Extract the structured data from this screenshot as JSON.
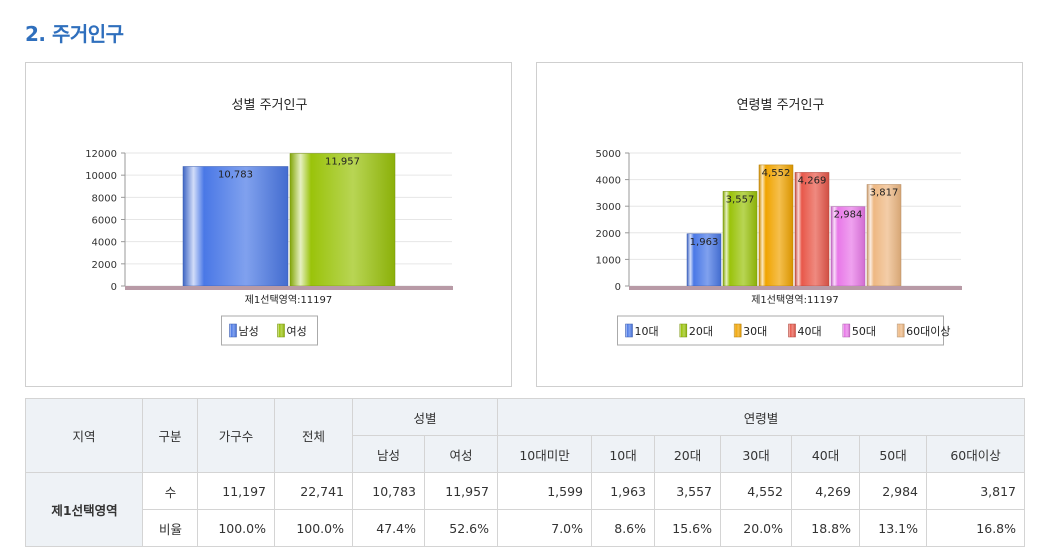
{
  "section_title": "2. 주거인구",
  "chart_data": [
    {
      "type": "bar",
      "title": "성별 주거인구",
      "xlabel": "제1선택영역:11197",
      "ylim": [
        0,
        12000
      ],
      "yticks": [
        0,
        2000,
        4000,
        6000,
        8000,
        10000,
        12000
      ],
      "categories": [
        "남성",
        "여성"
      ],
      "values": [
        10783,
        11957
      ],
      "value_labels": [
        "10,783",
        "11,957"
      ],
      "colors": [
        "#4a78e6",
        "#9ac30a"
      ],
      "grid": true,
      "legend": "bottom",
      "legend_entries": [
        "남성",
        "여성"
      ]
    },
    {
      "type": "bar",
      "title": "연령별 주거인구",
      "xlabel": "제1선택영역:11197",
      "ylim": [
        0,
        5000
      ],
      "yticks": [
        0,
        1000,
        2000,
        3000,
        4000,
        5000
      ],
      "categories": [
        "10대",
        "20대",
        "30대",
        "40대",
        "50대",
        "60대이상"
      ],
      "values": [
        1963,
        3557,
        4552,
        4269,
        2984,
        3817
      ],
      "value_labels": [
        "1,963",
        "3,557",
        "4,552",
        "4,269",
        "2,984",
        "3,817"
      ],
      "colors": [
        "#4a78e6",
        "#9ac30a",
        "#f0a400",
        "#e8584a",
        "#e878e8",
        "#eeb882"
      ],
      "grid": true,
      "legend": "bottom",
      "legend_entries": [
        "10대",
        "20대",
        "30대",
        "40대",
        "50대",
        "60대이상"
      ]
    }
  ],
  "table": {
    "headers": {
      "region": "지역",
      "gubun": "구분",
      "households": "가구수",
      "total": "전체",
      "gender": "성별",
      "age": "연령별",
      "male": "남성",
      "female": "여성",
      "ages": [
        "10대미만",
        "10대",
        "20대",
        "30대",
        "40대",
        "50대",
        "60대이상"
      ]
    },
    "region_name": "제1선택영역",
    "rows": [
      {
        "label": "수",
        "values": [
          "11,197",
          "22,741",
          "10,783",
          "11,957",
          "1,599",
          "1,963",
          "3,557",
          "4,552",
          "4,269",
          "2,984",
          "3,817"
        ]
      },
      {
        "label": "비율",
        "values": [
          "100.0%",
          "100.0%",
          "47.4%",
          "52.6%",
          "7.0%",
          "8.6%",
          "15.6%",
          "20.0%",
          "18.8%",
          "13.1%",
          "16.8%"
        ]
      }
    ]
  }
}
